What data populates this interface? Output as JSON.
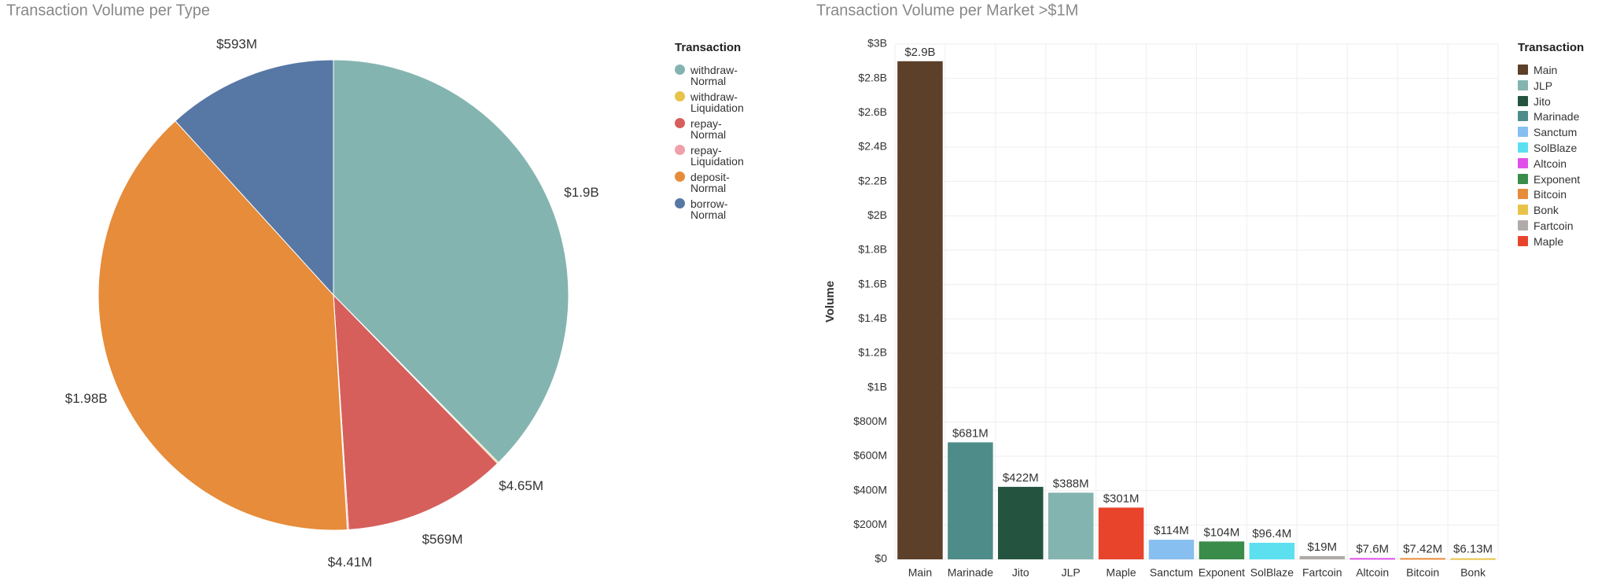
{
  "chart_data": [
    {
      "type": "pie",
      "title": "Transaction Volume per Type",
      "legend_title": "Transaction",
      "categories": [
        "withdraw-Normal",
        "withdraw-Liquidation",
        "repay-Normal",
        "repay-Liquidation",
        "deposit-Normal",
        "borrow-Normal"
      ],
      "values": [
        1900000000,
        4650000,
        569000000,
        4410000,
        1980000000,
        593000000
      ],
      "value_labels": [
        "$1.9B",
        "$4.65M",
        "$569M",
        "$4.41M",
        "$1.98B",
        "$593M"
      ],
      "colors": [
        "#84b4b0",
        "#e8c34a",
        "#d65f5c",
        "#f0a0a8",
        "#e68c3a",
        "#5778a5"
      ]
    },
    {
      "type": "bar",
      "title": "Transaction Volume per Market >$1M",
      "legend_title": "Transaction",
      "y_label": "Volume",
      "categories": [
        "Main",
        "Marinade",
        "Jito",
        "JLP",
        "Maple",
        "Sanctum",
        "Exponent",
        "SolBlaze",
        "Fartcoin",
        "Altcoin",
        "Bitcoin",
        "Bonk"
      ],
      "values": [
        2900000000,
        681000000,
        422000000,
        388000000,
        301000000,
        114000000,
        104000000,
        96400000,
        19000000,
        7600000,
        7420000,
        6130000
      ],
      "value_labels": [
        "$2.9B",
        "$681M",
        "$422M",
        "$388M",
        "$301M",
        "$114M",
        "$104M",
        "$96.4M",
        "$19M",
        "$7.6M",
        "$7.42M",
        "$6.13M"
      ],
      "colors": [
        "#5c4029",
        "#4e8c8a",
        "#245440",
        "#84b4b0",
        "#e8442c",
        "#86bff0",
        "#3a8c4a",
        "#5ce0f0",
        "#b0aaa8",
        "#e050e8",
        "#e68c3a",
        "#e8c34a"
      ],
      "legend_order": [
        "Main",
        "JLP",
        "Jito",
        "Marinade",
        "Sanctum",
        "SolBlaze",
        "Altcoin",
        "Exponent",
        "Bitcoin",
        "Bonk",
        "Fartcoin",
        "Maple"
      ],
      "ylim": [
        0,
        3000000000
      ],
      "yticks": [
        {
          "value": 0,
          "label": "$0"
        },
        {
          "value": 200000000,
          "label": "$200M"
        },
        {
          "value": 400000000,
          "label": "$400M"
        },
        {
          "value": 600000000,
          "label": "$600M"
        },
        {
          "value": 800000000,
          "label": "$800M"
        },
        {
          "value": 1000000000,
          "label": "$1B"
        },
        {
          "value": 1200000000,
          "label": "$1.2B"
        },
        {
          "value": 1400000000,
          "label": "$1.4B"
        },
        {
          "value": 1600000000,
          "label": "$1.6B"
        },
        {
          "value": 1800000000,
          "label": "$1.8B"
        },
        {
          "value": 2000000000,
          "label": "$2B"
        },
        {
          "value": 2200000000,
          "label": "$2.2B"
        },
        {
          "value": 2400000000,
          "label": "$2.4B"
        },
        {
          "value": 2600000000,
          "label": "$2.6B"
        },
        {
          "value": 2800000000,
          "label": "$2.8B"
        },
        {
          "value": 3000000000,
          "label": "$3B"
        }
      ],
      "grid": true
    }
  ]
}
